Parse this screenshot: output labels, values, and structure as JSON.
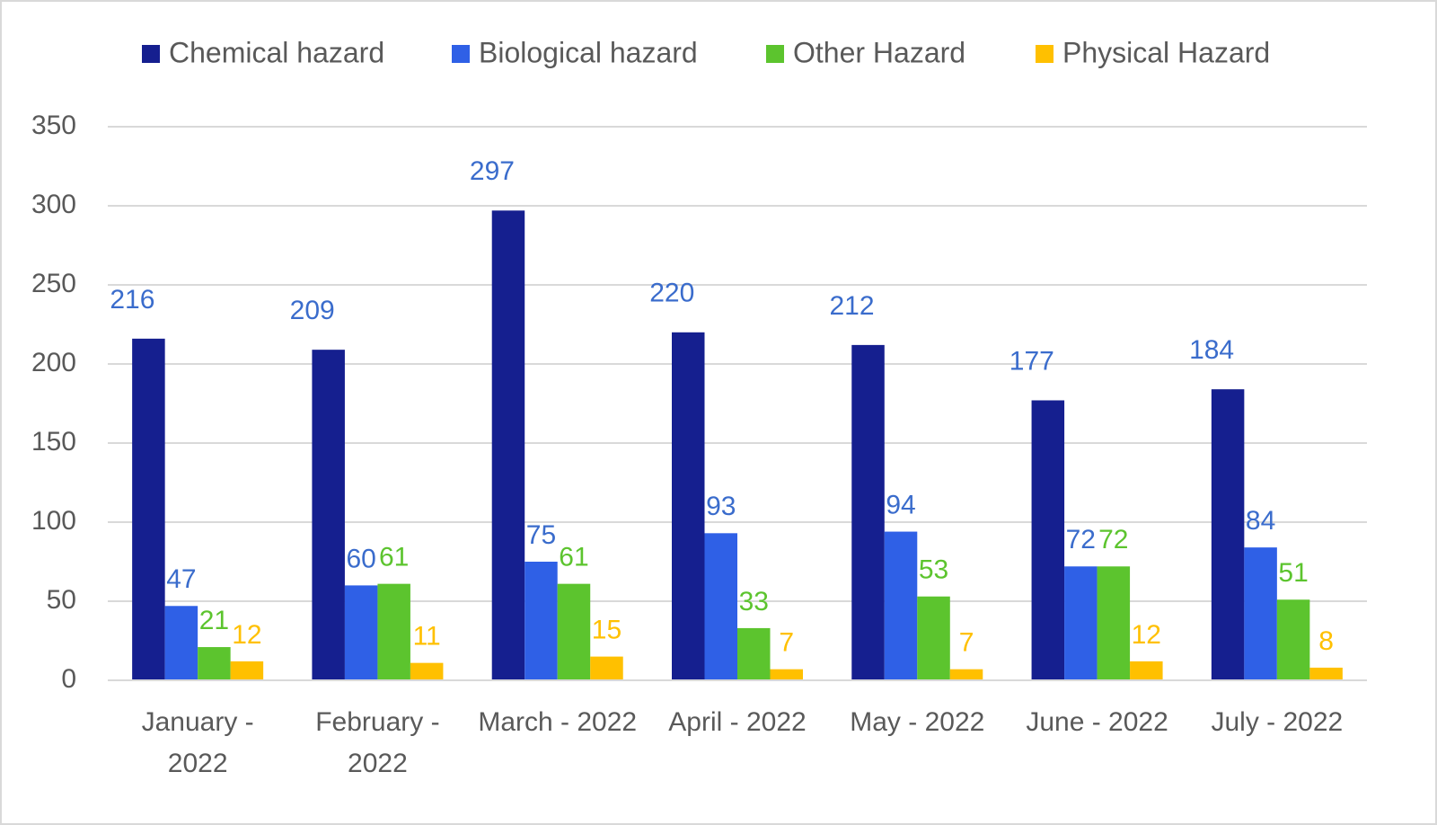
{
  "chart_data": {
    "type": "bar",
    "categories": [
      "January - 2022",
      "February - 2022",
      "March - 2022",
      "April - 2022",
      "May - 2022",
      "June - 2022",
      "July - 2022"
    ],
    "series": [
      {
        "name": "Chemical hazard",
        "color": "#151f8f",
        "label_color": "#3a6ccc",
        "values": [
          216,
          209,
          297,
          220,
          212,
          177,
          184
        ]
      },
      {
        "name": "Biological hazard",
        "color": "#2f60e6",
        "label_color": "#3a6ccc",
        "values": [
          47,
          60,
          75,
          93,
          94,
          72,
          84
        ]
      },
      {
        "name": "Other Hazard",
        "color": "#5cc42e",
        "label_color": "#5cc42e",
        "values": [
          21,
          61,
          61,
          33,
          53,
          72,
          51
        ]
      },
      {
        "name": "Physical Hazard",
        "color": "#ffc000",
        "label_color": "#ffc000",
        "values": [
          12,
          11,
          15,
          7,
          7,
          12,
          8
        ]
      }
    ],
    "ylim": [
      0,
      350
    ],
    "yticks": [
      0,
      50,
      100,
      150,
      200,
      250,
      300,
      350
    ],
    "grid": true,
    "legend": "top"
  }
}
